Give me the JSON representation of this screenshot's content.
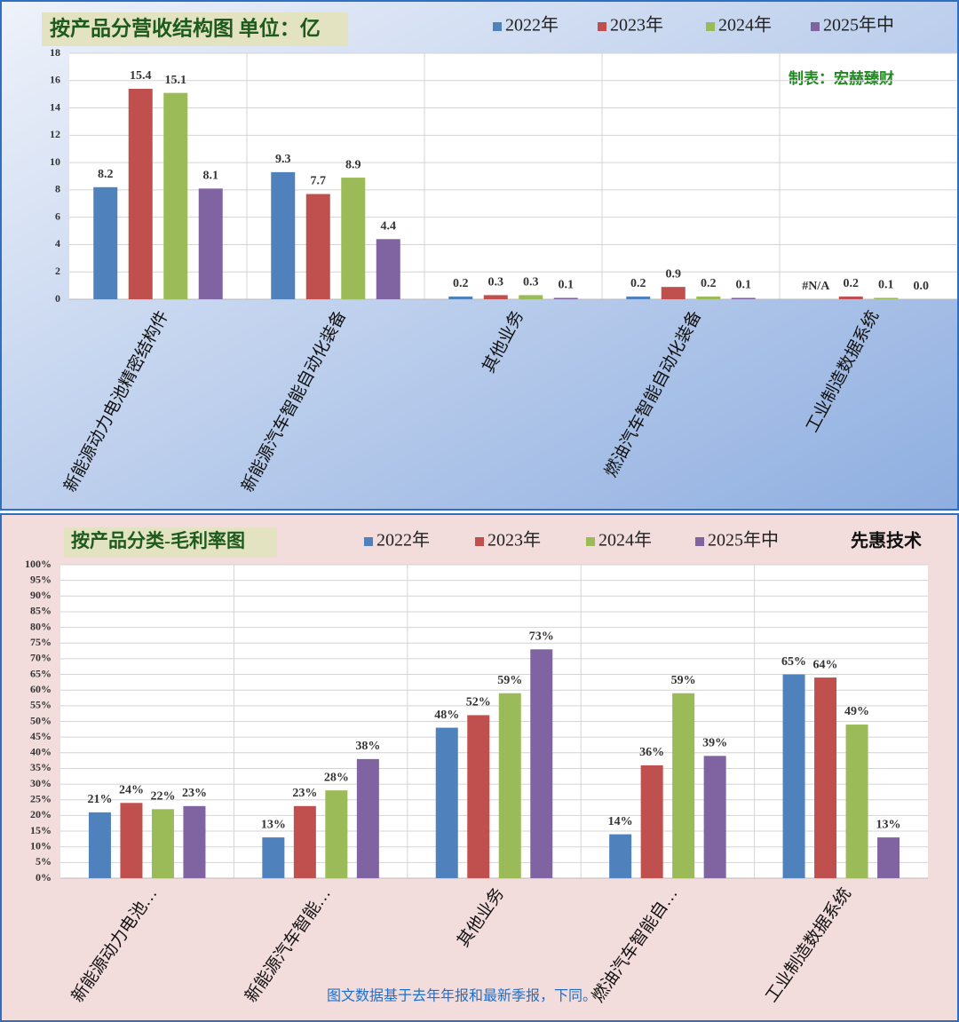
{
  "chart_data": [
    {
      "type": "bar",
      "title": "按产品分营收结构图 单位：亿",
      "annotation": "制表：宏赫臻财",
      "categories": [
        "新能源动力电池精密结构件",
        "新能源汽车智能自动化装备",
        "其他业务",
        "燃油汽车智能自动化装备",
        "工业制造数据系统"
      ],
      "series": [
        {
          "name": "2022年",
          "color": "#4f81bd",
          "values": [
            8.2,
            9.3,
            0.2,
            0.2,
            null
          ],
          "value_labels": [
            "8.2",
            "9.3",
            "0.2",
            "0.2",
            "#N/A"
          ]
        },
        {
          "name": "2023年",
          "color": "#c0504d",
          "values": [
            15.4,
            7.7,
            0.3,
            0.9,
            0.2
          ],
          "value_labels": [
            "15.4",
            "7.7",
            "0.3",
            "0.9",
            "0.2"
          ]
        },
        {
          "name": "2024年",
          "color": "#9bbb59",
          "values": [
            15.1,
            8.9,
            0.3,
            0.2,
            0.1
          ],
          "value_labels": [
            "15.1",
            "8.9",
            "0.3",
            "0.2",
            "0.1"
          ]
        },
        {
          "name": "2025年中",
          "color": "#8064a2",
          "values": [
            8.1,
            4.4,
            0.1,
            0.1,
            0.0
          ],
          "value_labels": [
            "8.1",
            "4.4",
            "0.1",
            "0.1",
            "0.0"
          ]
        }
      ],
      "ylim": [
        0,
        18
      ],
      "yticks": [
        0,
        2,
        4,
        6,
        8,
        10,
        12,
        14,
        16,
        18
      ],
      "grid": true
    },
    {
      "type": "bar",
      "title": "按产品分类-毛利率图",
      "annotation": "先惠技术",
      "footnote": "图文数据基于去年年报和最新季报，下同。",
      "categories": [
        "新能源动力电池…",
        "新能源汽车智能…",
        "其他业务",
        "燃油汽车智能自…",
        "工业制造数据系统"
      ],
      "series": [
        {
          "name": "2022年",
          "color": "#4f81bd",
          "values": [
            21,
            13,
            48,
            14,
            65
          ],
          "value_labels": [
            "21%",
            "13%",
            "48%",
            "14%",
            "65%"
          ]
        },
        {
          "name": "2023年",
          "color": "#c0504d",
          "values": [
            24,
            23,
            52,
            36,
            64
          ],
          "value_labels": [
            "24%",
            "23%",
            "52%",
            "36%",
            "64%"
          ]
        },
        {
          "name": "2024年",
          "color": "#9bbb59",
          "values": [
            22,
            28,
            59,
            59,
            49
          ],
          "value_labels": [
            "22%",
            "28%",
            "59%",
            "59%",
            "49%"
          ]
        },
        {
          "name": "2025年中",
          "color": "#8064a2",
          "values": [
            23,
            38,
            73,
            39,
            13
          ],
          "value_labels": [
            "23%",
            "38%",
            "73%",
            "39%",
            "13%"
          ]
        }
      ],
      "ylim": [
        0,
        100
      ],
      "yticks": [
        {
          "value": 0,
          "label": "0%"
        },
        {
          "value": 5,
          "label": "5%"
        },
        {
          "value": 10,
          "label": "10%"
        },
        {
          "value": 15,
          "label": "15%"
        },
        {
          "value": 20,
          "label": "20%"
        },
        {
          "value": 25,
          "label": "25%"
        },
        {
          "value": 30,
          "label": "30%"
        },
        {
          "value": 35,
          "label": "35%"
        },
        {
          "value": 40,
          "label": "40%"
        },
        {
          "value": 45,
          "label": "45%"
        },
        {
          "value": 50,
          "label": "50%"
        },
        {
          "value": 55,
          "label": "55%"
        },
        {
          "value": 60,
          "label": "60%"
        },
        {
          "value": 65,
          "label": "65%"
        },
        {
          "value": 70,
          "label": "70%"
        },
        {
          "value": 75,
          "label": "75%"
        },
        {
          "value": 80,
          "label": "80%"
        },
        {
          "value": 85,
          "label": "85%"
        },
        {
          "value": 90,
          "label": "90%"
        },
        {
          "value": 95,
          "label": "95%"
        },
        {
          "value": 100,
          "label": "100%"
        }
      ],
      "grid": true
    }
  ]
}
